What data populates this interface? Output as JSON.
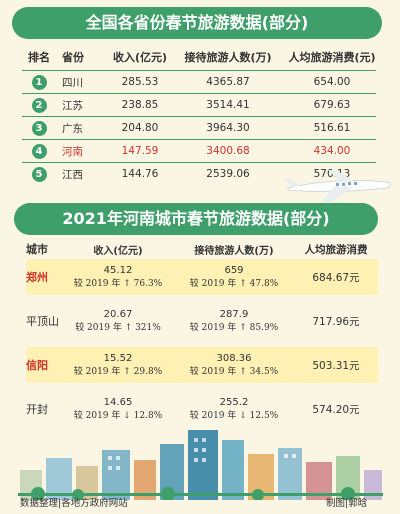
{
  "section1": {
    "title": "全国各省份春节旅游数据(部分)",
    "headers": [
      "排名",
      "省份",
      "收入(亿元)",
      "接待旅游人数(万)",
      "人均旅游消费(元)"
    ],
    "rows": [
      {
        "rank": "1",
        "province": "四川",
        "income": "285.53",
        "visitors": "4365.87",
        "spend": "654.00"
      },
      {
        "rank": "2",
        "province": "江苏",
        "income": "238.85",
        "visitors": "3514.41",
        "spend": "679.63"
      },
      {
        "rank": "3",
        "province": "广东",
        "income": "204.80",
        "visitors": "3964.30",
        "spend": "516.61"
      },
      {
        "rank": "4",
        "province": "河南",
        "income": "147.59",
        "visitors": "3400.68",
        "spend": "434.00"
      },
      {
        "rank": "5",
        "province": "江西",
        "income": "144.76",
        "visitors": "2539.06",
        "spend": "570.13"
      }
    ]
  },
  "section2": {
    "title": "2021年河南城市春节旅游数据(部分)",
    "headers": [
      "城市",
      "收入(亿元)",
      "接待旅游人数(万)",
      "人均旅游消费"
    ],
    "rows": [
      {
        "city": "郑州",
        "income": "45.12",
        "income_cmp": "较 2019 年 ↑ 76.3%",
        "visitors": "659",
        "visitors_cmp": "较 2019 年 ↑ 47.8%",
        "spend": "684.67元"
      },
      {
        "city": "平顶山",
        "income": "20.67",
        "income_cmp": "较 2019 年 ↑ 321%",
        "visitors": "287.9",
        "visitors_cmp": "较 2019 年 ↑ 85.9%",
        "spend": "717.96元"
      },
      {
        "city": "信阳",
        "income": "15.52",
        "income_cmp": "较 2019 年 ↑ 29.8%",
        "visitors": "308.36",
        "visitors_cmp": "较 2019 年 ↑ 34.5%",
        "spend": "503.31元"
      },
      {
        "city": "开封",
        "income": "14.65",
        "income_cmp": "较 2019 年 ↓ 12.8%",
        "visitors": "255.2",
        "visitors_cmp": "较 2019 年 ↓ 12.5%",
        "spend": "574.20元"
      }
    ]
  },
  "footer": {
    "source": "数据整理|各地方政府网站",
    "credit": "制图|郭晗"
  },
  "colors": {
    "accent": "#3f9f6a",
    "highlight": "#d0332b",
    "band": "#fff0b4",
    "background": "#fbf6e4"
  }
}
